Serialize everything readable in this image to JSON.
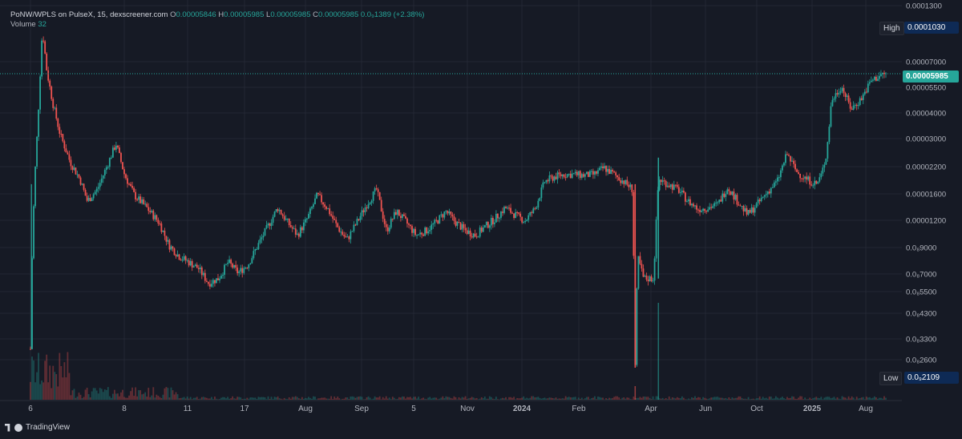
{
  "legend": {
    "symbol": "PoNW/WPLS on PulseX, 15, dexscreener.com",
    "open_label": "O",
    "open": "0.00005846",
    "high_label": "H",
    "high": "0.00005985",
    "low_label": "L",
    "low": "0.00005985",
    "close_label": "C",
    "close": "0.00005985",
    "change": "0.0₉1389 (+2.38%)",
    "volume_label": "Volume",
    "volume": "32"
  },
  "tags": {
    "high_label": "High",
    "high_value": "0.0001030",
    "low_label": "Low",
    "low_value": "0.0₉2109",
    "last_price": "0.00005985"
  },
  "brand": "TradingView",
  "colors": {
    "up": "#26a69a",
    "down": "#ef5350",
    "background": "#161a25",
    "grid": "#232734"
  },
  "chart_data": {
    "type": "candlestick",
    "y_scale": "log",
    "y_tick_labels": [
      "0.0001300",
      "0.00007000",
      "0.00005500",
      "0.00004000",
      "0.00003000",
      "0.00002200",
      "0.00001600",
      "0.00001200",
      "0.0₈9000",
      "0.0₈7000",
      "0.0₈5500",
      "0.0₈4300",
      "0.0₈3300",
      "0.0₈2600"
    ],
    "y_tick_values": [
      0.00013,
      7e-05,
      5.5e-05,
      4e-05,
      3e-05,
      2.2e-05,
      1.6e-05,
      1.2e-05,
      9e-06,
      7e-06,
      5.5e-06,
      4.3e-06,
      3.3e-06,
      2.6e-06
    ],
    "x_tick_labels": [
      "6",
      "8",
      "11",
      "17",
      "Aug",
      "Sep",
      "5",
      "Nov",
      "2024",
      "Feb",
      "Apr",
      "Jun",
      "Oct",
      "2025",
      "Aug"
    ],
    "x_tick_bold": [
      false,
      false,
      false,
      false,
      false,
      false,
      false,
      false,
      true,
      false,
      false,
      false,
      false,
      true,
      false
    ],
    "price_path": [
      [
        0,
        2.6e-06
      ],
      [
        0.3,
        7e-06
      ],
      [
        0.8,
        1.7e-05
      ],
      [
        1.5,
        3.5e-05
      ],
      [
        2.4,
        0.0001
      ],
      [
        3.3,
        6.2e-05
      ],
      [
        4.5,
        4.3e-05
      ],
      [
        6,
        3e-05
      ],
      [
        8,
        2.2e-05
      ],
      [
        10,
        1.8e-05
      ],
      [
        11.5,
        1.4e-05
      ],
      [
        13.5,
        1.6e-05
      ],
      [
        15.5,
        2.1e-05
      ],
      [
        17.3,
        2.7e-05
      ],
      [
        19,
        1.9e-05
      ],
      [
        21,
        1.5e-05
      ],
      [
        23.5,
        1.3e-05
      ],
      [
        26,
        1.1e-05
      ],
      [
        28,
        8.5e-06
      ],
      [
        30,
        7.5e-06
      ],
      [
        32,
        7e-06
      ],
      [
        34,
        6.5e-06
      ],
      [
        36,
        5.5e-06
      ],
      [
        38,
        5.8e-06
      ],
      [
        40,
        7e-06
      ],
      [
        42,
        6.2e-06
      ],
      [
        44,
        6.8e-06
      ],
      [
        46,
        8.5e-06
      ],
      [
        48,
        1.05e-05
      ],
      [
        50,
        1.3e-05
      ],
      [
        52,
        1.1e-05
      ],
      [
        54,
        9.5e-06
      ],
      [
        56,
        1.15e-05
      ],
      [
        58,
        1.5e-05
      ],
      [
        60,
        1.3e-05
      ],
      [
        62,
        1.05e-05
      ],
      [
        64,
        9e-06
      ],
      [
        66,
        1.1e-05
      ],
      [
        68,
        1.35e-05
      ],
      [
        70,
        1.6e-05
      ],
      [
        72,
        1e-05
      ],
      [
        74,
        1.25e-05
      ],
      [
        76,
        1.1e-05
      ],
      [
        78,
        9.5e-06
      ],
      [
        80,
        1e-05
      ],
      [
        82,
        1.1e-05
      ],
      [
        84,
        1.25e-05
      ],
      [
        86,
        1.1e-05
      ],
      [
        88,
        1e-05
      ],
      [
        90,
        9.5e-06
      ],
      [
        92,
        1.05e-05
      ],
      [
        94,
        1.15e-05
      ],
      [
        96,
        1.3e-05
      ],
      [
        98,
        1.2e-05
      ],
      [
        100,
        1.12e-05
      ],
      [
        102,
        1.28e-05
      ],
      [
        104,
        1.75e-05
      ],
      [
        106,
        1.85e-05
      ],
      [
        108,
        1.9e-05
      ],
      [
        110,
        1.9e-05
      ],
      [
        112,
        1.88e-05
      ],
      [
        114,
        1.9e-05
      ],
      [
        116,
        2.05e-05
      ],
      [
        118,
        1.9e-05
      ],
      [
        120,
        1.75e-05
      ],
      [
        121.8,
        1.6e-05
      ],
      [
        122.3,
        2.1e-06
      ],
      [
        122.8,
        7.5e-06
      ],
      [
        124,
        5.8e-06
      ],
      [
        126,
        5.8e-06
      ],
      [
        127,
        1.8e-05
      ],
      [
        129,
        1.7e-05
      ],
      [
        131,
        1.6e-05
      ],
      [
        133,
        1.4e-05
      ],
      [
        135,
        1.28e-05
      ],
      [
        137,
        1.3e-05
      ],
      [
        139,
        1.35e-05
      ],
      [
        141,
        1.65e-05
      ],
      [
        143,
        1.4e-05
      ],
      [
        145,
        1.2e-05
      ],
      [
        147,
        1.35e-05
      ],
      [
        149,
        1.55e-05
      ],
      [
        151,
        1.75e-05
      ],
      [
        153,
        2.4e-05
      ],
      [
        155,
        1.95e-05
      ],
      [
        157,
        1.8e-05
      ],
      [
        159,
        1.7e-05
      ],
      [
        160,
        1.9e-05
      ],
      [
        161,
        2.4e-05
      ],
      [
        162,
        4.4e-05
      ],
      [
        164,
        5.2e-05
      ],
      [
        166,
        4e-05
      ],
      [
        168,
        4.5e-05
      ],
      [
        170,
        5.5e-05
      ],
      [
        172,
        5.9e-05
      ],
      [
        173,
        5.985e-05
      ]
    ],
    "high": 0.000103,
    "low": 2.109e-06,
    "last": 5.985e-05
  }
}
